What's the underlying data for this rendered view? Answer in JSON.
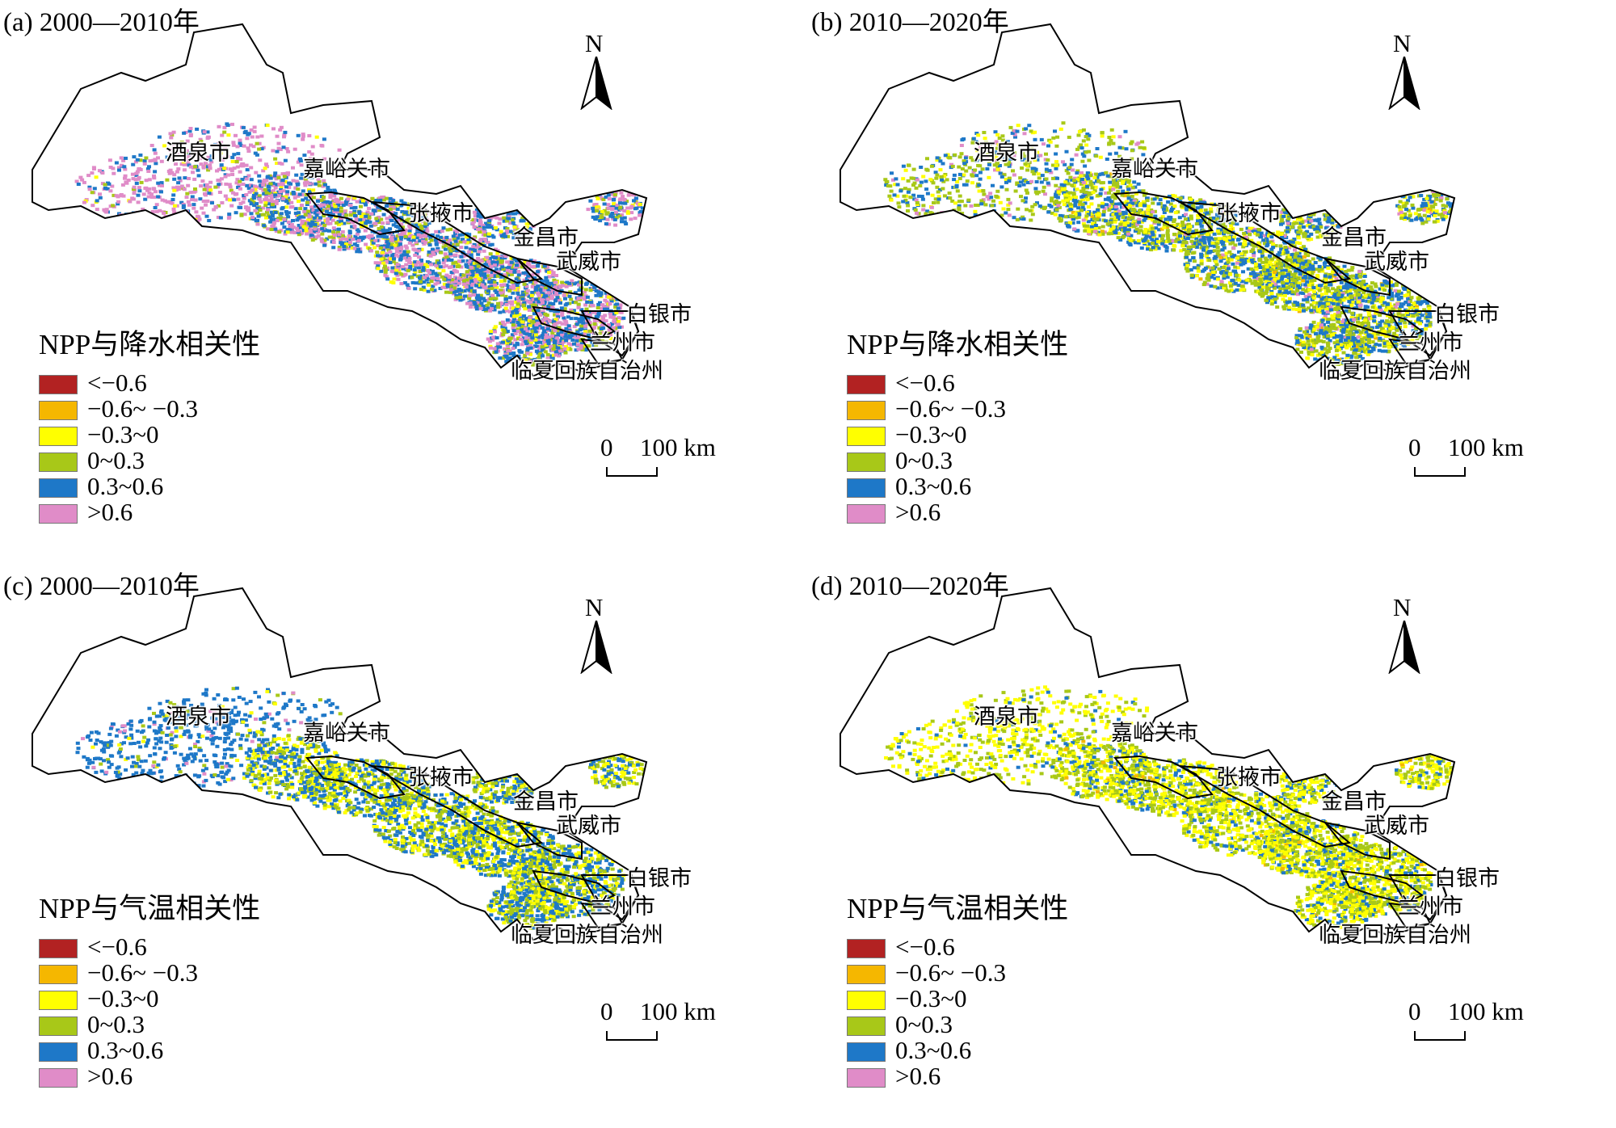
{
  "panels": [
    {
      "id": "a",
      "title": "(a) 2000—2010年",
      "legend_title": "NPP与降水相关性",
      "pattern": "precip_0010"
    },
    {
      "id": "b",
      "title": "(b) 2010—2020年",
      "legend_title": "NPP与降水相关性",
      "pattern": "precip_1020"
    },
    {
      "id": "c",
      "title": "(c) 2000—2010年",
      "legend_title": "NPP与气温相关性",
      "pattern": "temp_0010"
    },
    {
      "id": "d",
      "title": "(d) 2010—2020年",
      "legend_title": "NPP与气温相关性",
      "pattern": "temp_1020"
    }
  ],
  "legend_classes": [
    {
      "label": "<−0.6",
      "color": "#b22222"
    },
    {
      "label": "−0.6~ −0.3",
      "color": "#f5b700"
    },
    {
      "label": "−0.3~0",
      "color": "#ffff00"
    },
    {
      "label": "0~0.3",
      "color": "#a8c818"
    },
    {
      "label": "0.3~0.6",
      "color": "#1e78c8"
    },
    {
      "label": ">0.6",
      "color": "#e08cc8"
    }
  ],
  "cities": {
    "jiuquan": "酒泉市",
    "jiayuguan": "嘉峪关市",
    "zhangye": "张掖市",
    "jinchang": "金昌市",
    "wuwei": "武威市",
    "baiyin": "白银市",
    "lanzhou": "兰州市",
    "linxia": "临夏回族自治州"
  },
  "north_label": "N",
  "scale": {
    "zero": "0",
    "distance": "100 km"
  }
}
